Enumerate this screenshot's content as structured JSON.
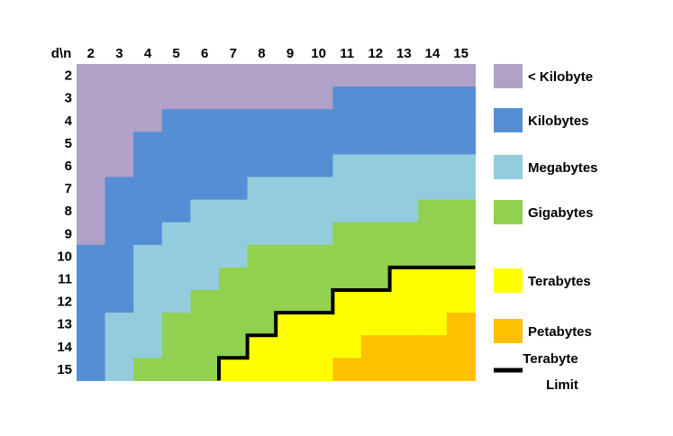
{
  "chart_data": {
    "type": "heatmap",
    "corner_label": "d\\n",
    "x": [
      "2",
      "3",
      "4",
      "5",
      "6",
      "7",
      "8",
      "9",
      "10",
      "11",
      "12",
      "13",
      "14",
      "15"
    ],
    "y": [
      "2",
      "3",
      "4",
      "5",
      "6",
      "7",
      "8",
      "9",
      "10",
      "11",
      "12",
      "13",
      "14",
      "15"
    ],
    "categories": [
      {
        "key": "lt_kb",
        "label": "< Kilobyte",
        "color": "#b1a0c7"
      },
      {
        "key": "kb",
        "label": "Kilobytes",
        "color": "#558ed5"
      },
      {
        "key": "mb",
        "label": "Megabytes",
        "color": "#93cddd"
      },
      {
        "key": "gb",
        "label": "Gigabytes",
        "color": "#92d050"
      },
      {
        "key": "tb",
        "label": "Terabytes",
        "color": "#ffff00"
      },
      {
        "key": "pb",
        "label": "Petabytes",
        "color": "#ffc000"
      }
    ],
    "values": [
      [
        0,
        0,
        0,
        0,
        0,
        0,
        0,
        0,
        0,
        0,
        0,
        0,
        0,
        0
      ],
      [
        0,
        0,
        0,
        0,
        0,
        0,
        0,
        0,
        0,
        1,
        1,
        1,
        1,
        1
      ],
      [
        0,
        0,
        0,
        1,
        1,
        1,
        1,
        1,
        1,
        1,
        1,
        1,
        1,
        1
      ],
      [
        0,
        0,
        1,
        1,
        1,
        1,
        1,
        1,
        1,
        1,
        1,
        1,
        1,
        1
      ],
      [
        0,
        0,
        1,
        1,
        1,
        1,
        1,
        1,
        1,
        2,
        2,
        2,
        2,
        2
      ],
      [
        0,
        1,
        1,
        1,
        1,
        1,
        2,
        2,
        2,
        2,
        2,
        2,
        2,
        2
      ],
      [
        0,
        1,
        1,
        1,
        2,
        2,
        2,
        2,
        2,
        2,
        2,
        2,
        3,
        3
      ],
      [
        0,
        1,
        1,
        2,
        2,
        2,
        2,
        2,
        2,
        3,
        3,
        3,
        3,
        3
      ],
      [
        1,
        1,
        2,
        2,
        2,
        2,
        3,
        3,
        3,
        3,
        3,
        3,
        3,
        3
      ],
      [
        1,
        1,
        2,
        2,
        2,
        3,
        3,
        3,
        3,
        3,
        3,
        4,
        4,
        4
      ],
      [
        1,
        1,
        2,
        2,
        3,
        3,
        3,
        3,
        3,
        4,
        4,
        4,
        4,
        4
      ],
      [
        1,
        2,
        2,
        3,
        3,
        3,
        3,
        4,
        4,
        4,
        4,
        4,
        4,
        5
      ],
      [
        1,
        2,
        2,
        3,
        3,
        3,
        4,
        4,
        4,
        4,
        5,
        5,
        5,
        5
      ],
      [
        1,
        2,
        3,
        3,
        3,
        4,
        4,
        4,
        4,
        5,
        5,
        5,
        5,
        5
      ]
    ],
    "limit_label_line1": "Terabyte",
    "limit_label_line2": "Limit"
  }
}
